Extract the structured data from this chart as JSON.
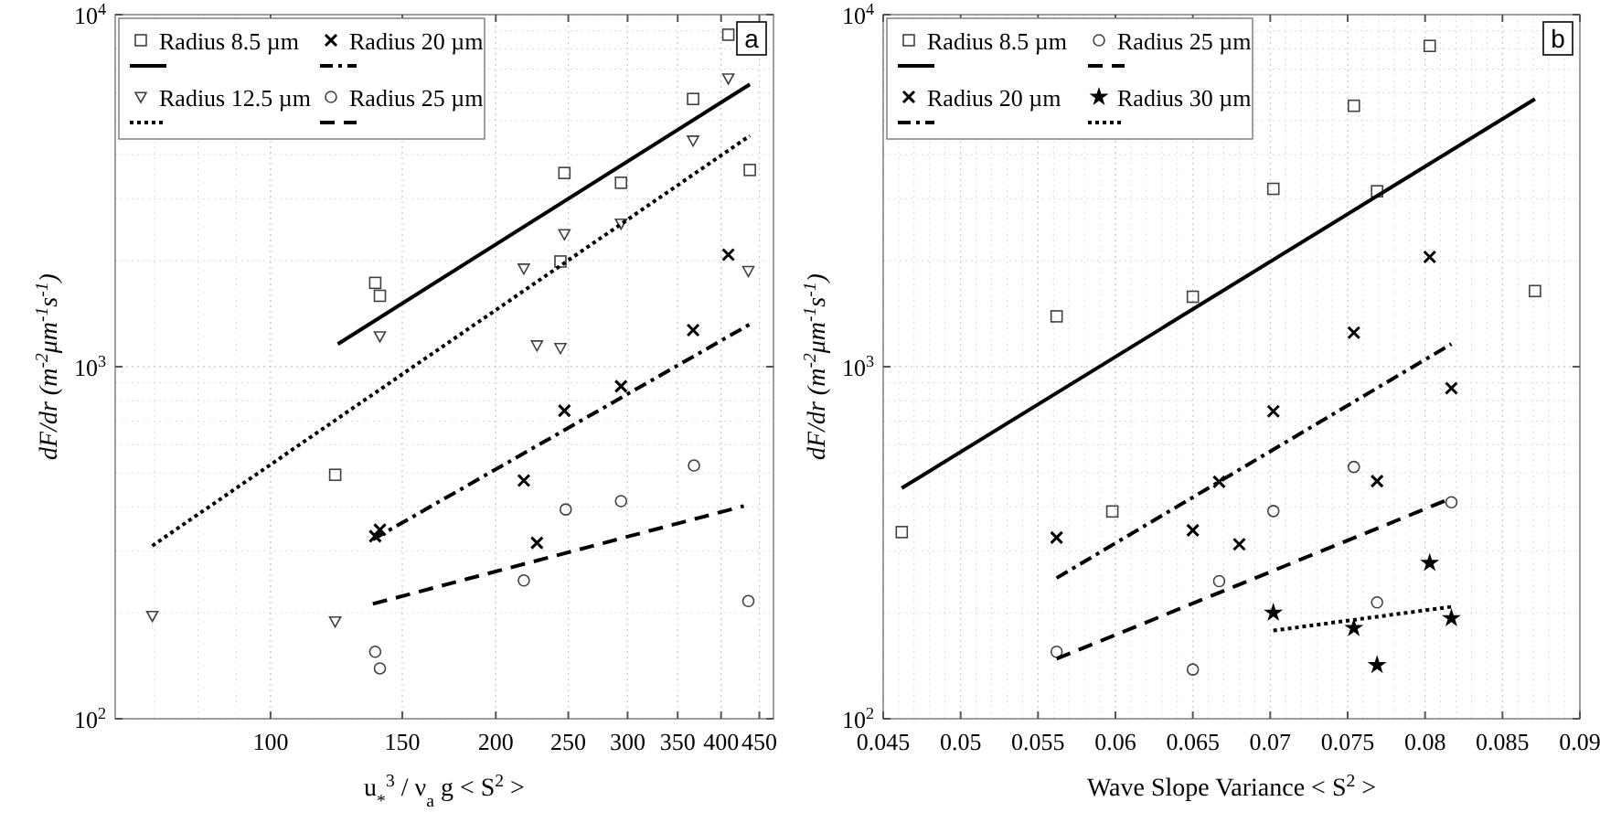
{
  "chart_data": [
    {
      "type": "scatter",
      "xlabel": "u$_{*}$$^{3}$ / ν$_{a}$ g  < S$^{2}$ >",
      "ylabel": "dF/dr (m$^{-2}$μm$^{-1}$s$^{-1}$)",
      "xlim": [
        62,
        470
      ],
      "xticks": [
        100,
        150,
        200,
        250,
        300,
        350,
        400,
        450
      ],
      "ylim": [
        100,
        10000
      ],
      "yticks": [
        {
          "value": 100,
          "label": "10$^{2}$"
        },
        {
          "value": 1000,
          "label": "10$^{3}$"
        },
        {
          "value": 10000,
          "label": "10$^{4}$"
        }
      ],
      "log": "xy",
      "grid": true,
      "legend": "top left",
      "annotations": [
        "a"
      ],
      "series": [
        {
          "name": "Radius 8.5 µm",
          "marker": "square",
          "color": "#000000",
          "x": [
            122,
            138,
            140,
            247,
            244,
            294,
            367,
            409,
            437
          ],
          "values": [
            493,
            1730,
            1590,
            3550,
            1990,
            3330,
            5760,
            8770,
            3620
          ]
        },
        {
          "type": "line",
          "line_style": "solid",
          "color": "#000000",
          "x": [
            123,
            437
          ],
          "values": [
            1160,
            6340
          ]
        },
        {
          "name": "Radius 20 µm",
          "marker": "cross",
          "color": "#000000",
          "x": [
            138,
            140,
            218,
            227,
            247,
            294,
            367,
            409
          ],
          "values": [
            330,
            344,
            475,
            316,
            750,
            880,
            1270,
            2080
          ]
        },
        {
          "type": "line",
          "line_style": "dashdot",
          "color": "#000000",
          "x": [
            137,
            437
          ],
          "values": [
            323,
            1320
          ]
        },
        {
          "name": "Radius 12.5 µm",
          "marker": "triangle",
          "color": "#000000",
          "x": [
            69.5,
            122,
            140,
            218,
            227,
            244,
            247,
            294,
            367,
            409,
            435
          ],
          "values": [
            196,
            189,
            1220,
            1900,
            1150,
            1130,
            2380,
            2550,
            4390,
            6590,
            1870
          ]
        },
        {
          "type": "line",
          "line_style": "dotted",
          "color": "#000000",
          "x": [
            69.5,
            437
          ],
          "values": [
            310,
            4530
          ]
        },
        {
          "name": "Radius 25 µm",
          "marker": "circle",
          "color": "#000000",
          "x": [
            138,
            140,
            218,
            248,
            294,
            368,
            435
          ],
          "values": [
            155,
            139,
            247,
            393,
            415,
            524,
            216
          ]
        },
        {
          "type": "line",
          "line_style": "dashed",
          "color": "#000000",
          "x": [
            137,
            429
          ],
          "values": [
            212,
            402
          ]
        }
      ]
    },
    {
      "type": "scatter",
      "xlabel": "Wave Slope Variance < S$^{2}$ >",
      "ylabel": "dF/dr (m$^{-2}$μm$^{-1}$s$^{-1}$)",
      "xlim": [
        0.045,
        0.09
      ],
      "xticks": [
        0.045,
        0.05,
        0.055,
        0.06,
        0.065,
        0.07,
        0.075,
        0.08,
        0.085,
        0.09
      ],
      "ylim": [
        100,
        10000
      ],
      "yticks": [
        {
          "value": 100,
          "label": "10$^{2}$"
        },
        {
          "value": 1000,
          "label": "10$^{3}$"
        },
        {
          "value": 10000,
          "label": "10$^{4}$"
        }
      ],
      "log": "y",
      "grid": true,
      "legend": "top left",
      "annotations": [
        "b"
      ],
      "series": [
        {
          "name": "Radius 8.5 µm",
          "marker": "square",
          "color": "#000000",
          "x": [
            0.0462,
            0.0562,
            0.0598,
            0.065,
            0.0702,
            0.0754,
            0.0769,
            0.0803,
            0.0871
          ],
          "values": [
            339,
            1390,
            388,
            1580,
            3200,
            5510,
            3150,
            8150,
            1640
          ]
        },
        {
          "type": "line",
          "line_style": "solid",
          "color": "#000000",
          "x": [
            0.0462,
            0.0871
          ],
          "values": [
            452,
            5760
          ]
        },
        {
          "name": "Radius 25 µm",
          "marker": "circle",
          "color": "#000000",
          "x": [
            0.0562,
            0.065,
            0.0667,
            0.0702,
            0.0754,
            0.0769,
            0.0817
          ],
          "values": [
            155,
            138,
            246,
            389,
            519,
            214,
            412
          ]
        },
        {
          "type": "line",
          "line_style": "dashed",
          "color": "#000000",
          "x": [
            0.0562,
            0.0817
          ],
          "values": [
            148,
            423
          ]
        },
        {
          "name": "Radius 20 µm",
          "marker": "cross",
          "color": "#000000",
          "x": [
            0.0562,
            0.0667,
            0.065,
            0.068,
            0.0702,
            0.0769,
            0.0754,
            0.0803,
            0.0817
          ],
          "values": [
            327,
            471,
            343,
            313,
            747,
            473,
            1250,
            2050,
            869
          ]
        },
        {
          "type": "line",
          "line_style": "dashdot",
          "color": "#000000",
          "x": [
            0.0562,
            0.0817
          ],
          "values": [
            251,
            1160
          ]
        },
        {
          "name": "Radius 30 µm",
          "marker": "star",
          "color": "#000000",
          "x": [
            0.0702,
            0.0754,
            0.0769,
            0.0803,
            0.0817
          ],
          "values": [
            200,
            181,
            142,
            277,
            193
          ]
        },
        {
          "type": "line",
          "line_style": "dotted",
          "color": "#000000",
          "x": [
            0.0702,
            0.0817
          ],
          "values": [
            178,
            208
          ]
        }
      ]
    }
  ]
}
